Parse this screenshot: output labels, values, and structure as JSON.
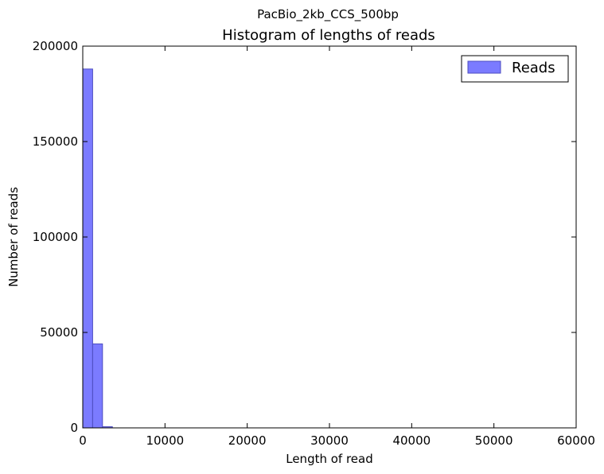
{
  "figure": {
    "suptitle": "PacBio_2kb_CCS_500bp"
  },
  "chart_data": {
    "type": "bar",
    "title": "Histogram of lengths of reads",
    "xlabel": "Length of read",
    "ylabel": "Number of reads",
    "xlim": [
      0,
      60000
    ],
    "ylim": [
      0,
      200000
    ],
    "x_ticks": [
      0,
      10000,
      20000,
      30000,
      40000,
      50000,
      60000
    ],
    "y_ticks": [
      0,
      50000,
      100000,
      150000,
      200000
    ],
    "bin_width": 1200,
    "bins": [
      {
        "x0": 0,
        "x1": 1200,
        "count": 188000
      },
      {
        "x0": 1200,
        "x1": 2400,
        "count": 44000
      },
      {
        "x0": 2400,
        "x1": 3600,
        "count": 600
      }
    ],
    "series": [
      {
        "name": "Reads",
        "color": "#7b7bff"
      }
    ],
    "legend": {
      "position": "top-right"
    },
    "grid": false
  }
}
